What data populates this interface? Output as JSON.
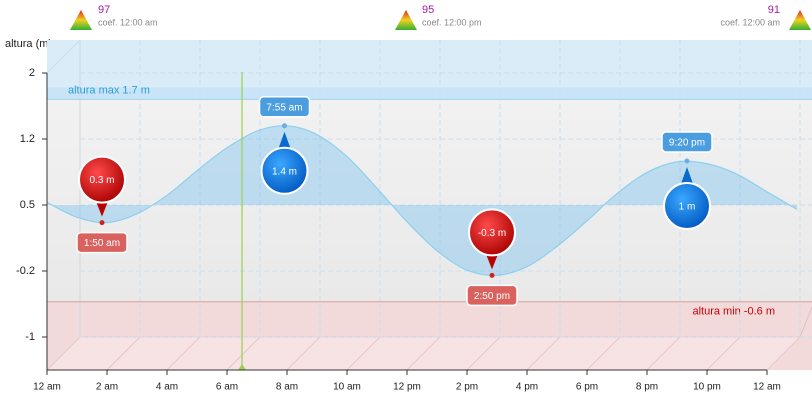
{
  "chart_data": {
    "type": "line",
    "y_label": "altura (m)",
    "x": [
      0,
      1,
      2,
      3,
      4,
      5,
      6,
      7,
      8,
      9,
      10,
      11,
      12,
      13,
      14,
      15,
      16,
      17,
      18,
      19,
      20,
      21,
      22,
      23,
      24,
      25
    ],
    "series": [
      {
        "color": "#8dd0f0",
        "values": [
          0.53,
          0.36,
          0.3,
          0.4,
          0.61,
          0.89,
          1.15,
          1.34,
          1.4,
          1.3,
          1.05,
          0.69,
          0.31,
          -0.02,
          -0.24,
          -0.3,
          -0.2,
          0.03,
          0.32,
          0.63,
          0.87,
          0.99,
          0.97,
          0.85,
          0.65,
          0.45
        ]
      }
    ],
    "xlim": [
      0,
      24
    ],
    "xticks": [
      {
        "value": 0,
        "label": "12 am"
      },
      {
        "value": 2,
        "label": "2 am"
      },
      {
        "value": 4,
        "label": "4 am"
      },
      {
        "value": 6,
        "label": "6 am"
      },
      {
        "value": 8,
        "label": "8 am"
      },
      {
        "value": 10,
        "label": "10 am"
      },
      {
        "value": 12,
        "label": "12 pm"
      },
      {
        "value": 14,
        "label": "2 pm"
      },
      {
        "value": 16,
        "label": "4 pm"
      },
      {
        "value": 18,
        "label": "6 pm"
      },
      {
        "value": 20,
        "label": "8 pm"
      },
      {
        "value": 22,
        "label": "10 pm"
      },
      {
        "value": 24,
        "label": "12 am"
      }
    ],
    "ylim": [
      -1.375,
      2.375
    ],
    "yticks": [
      2,
      {
        "value": 1.25,
        "label": "1.2"
      },
      0.5,
      {
        "value": -0.25,
        "label": "-0.2"
      },
      -1
    ],
    "grid": true,
    "area_base": 0.5,
    "now": 6.5,
    "now_color": "#9ad14b",
    "max_level": {
      "value": 1.7,
      "label": "altura max 1.7 m"
    },
    "min_level": {
      "value": -0.6,
      "label": "altura min -0.6 m"
    },
    "extremes": {
      "kinds": [
        "low",
        "high",
        "low",
        "high"
      ],
      "x": [
        1.8333,
        7.9167,
        14.8333,
        21.3333
      ],
      "x_labels": [
        "1:50 am",
        "7:55 am",
        "2:50 pm",
        "9:20 pm"
      ],
      "values": [
        0.3,
        1.4,
        -0.3,
        1
      ],
      "value_labels": [
        "0.3 m",
        "1.4 m",
        "-0.3 m",
        "1 m"
      ]
    },
    "coefficients": [
      {
        "value": 97,
        "label": "coef. 12:00 am"
      },
      {
        "value": 95,
        "label": "coef. 12:00 pm"
      },
      {
        "value": 91,
        "label": "coef. 12:00 am"
      }
    ]
  }
}
